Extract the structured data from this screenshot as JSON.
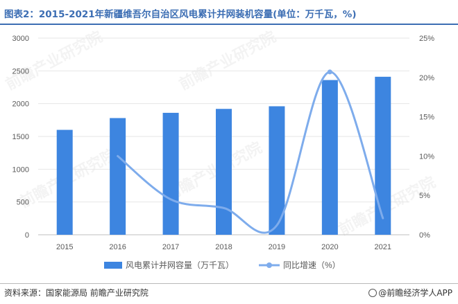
{
  "title": "图表2：2015-2021年新疆维吾尔自治区风电累计并网装机容量(单位：万千瓦，%)",
  "source": "资料来源：国家能源局 前瞻产业研究院",
  "credit": "@前瞻经济学人APP",
  "watermark_text": "前瞻产业研究院",
  "colors": {
    "bar": "#3d85e0",
    "line": "#7eacec",
    "axis": "#bfbfbf",
    "grid": "#e6e6e6",
    "tick": "#595959",
    "title": "#3b6db3"
  },
  "chart_data": {
    "type": "bar",
    "categories": [
      "2015",
      "2016",
      "2017",
      "2018",
      "2019",
      "2020",
      "2021"
    ],
    "series": [
      {
        "name": "风电累计并网容量（万千瓦）",
        "type": "bar",
        "axis": "left",
        "values": [
          1600,
          1780,
          1860,
          1920,
          1960,
          2360,
          2410
        ]
      },
      {
        "name": "同比增速（%）",
        "type": "line",
        "axis": "right",
        "values": [
          null,
          10.0,
          4.5,
          3.4,
          1.2,
          20.7,
          2.1
        ]
      }
    ],
    "ylim_left": [
      0,
      3000
    ],
    "yticks_left": [
      "0",
      "500",
      "1000",
      "1500",
      "2000",
      "2500",
      "3000"
    ],
    "ylim_right": [
      0,
      25
    ],
    "yticks_right": [
      "0%",
      "5%",
      "10%",
      "15%",
      "20%",
      "25%"
    ],
    "grid": true,
    "legend_position": "bottom"
  }
}
